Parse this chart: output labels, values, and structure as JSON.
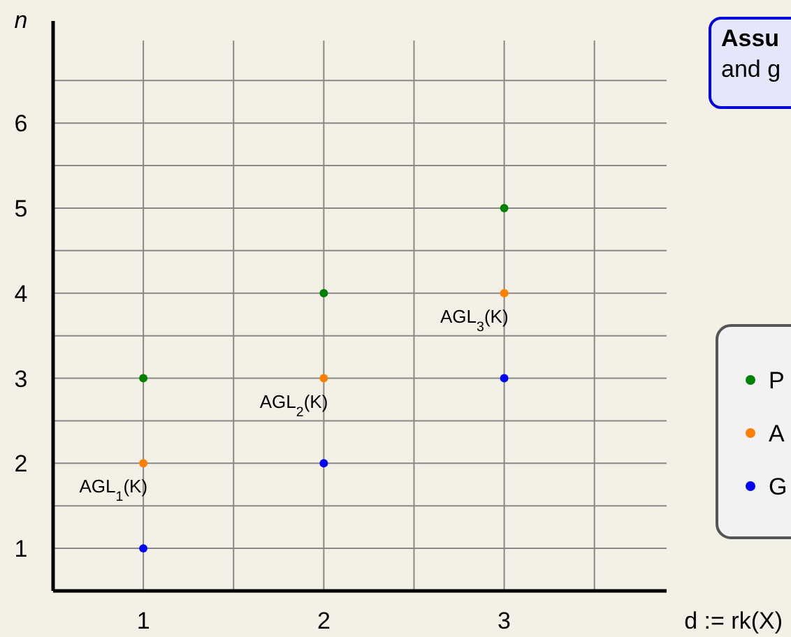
{
  "chart_data": {
    "type": "scatter",
    "xlabel": "d := rk(X)",
    "ylabel": "n",
    "xlim": [
      0.5,
      3.9
    ],
    "ylim": [
      0.5,
      7.2
    ],
    "xticks": [
      1,
      {
        "value": 1.5,
        "label": null
      },
      2,
      {
        "value": 2.5,
        "label": null
      },
      3,
      {
        "value": 3.5,
        "label": null
      }
    ],
    "yticks": [
      1,
      {
        "value": 1.5,
        "label": null
      },
      2,
      {
        "value": 2.5,
        "label": null
      },
      3,
      {
        "value": 3.5,
        "label": null
      },
      4,
      {
        "value": 4.5,
        "label": null
      },
      5,
      {
        "value": 5.5,
        "label": null
      },
      6,
      {
        "value": 6.5,
        "label": null
      }
    ],
    "grid": true,
    "marker": "circle",
    "legend": "right",
    "series": [
      {
        "name": "P",
        "color": "#008000",
        "x": [
          1,
          2,
          3
        ],
        "values": [
          3,
          4,
          5
        ]
      },
      {
        "name": "A",
        "color": "#ff8000",
        "x": [
          1,
          2,
          3
        ],
        "values": [
          2,
          3,
          4
        ]
      },
      {
        "name": "G",
        "color": "#0000ff",
        "x": [
          1,
          2,
          3
        ],
        "values": [
          1,
          2,
          3
        ]
      }
    ],
    "annotations": [
      {
        "text": "AGL$_{1}$(K)",
        "x": 1,
        "y": 2
      },
      {
        "text": "AGL$_{2}$(K)",
        "x": 2,
        "y": 3
      },
      {
        "text": "AGL$_{3}$(K)",
        "x": 3,
        "y": 4
      },
      "Assu",
      "and g"
    ]
  }
}
